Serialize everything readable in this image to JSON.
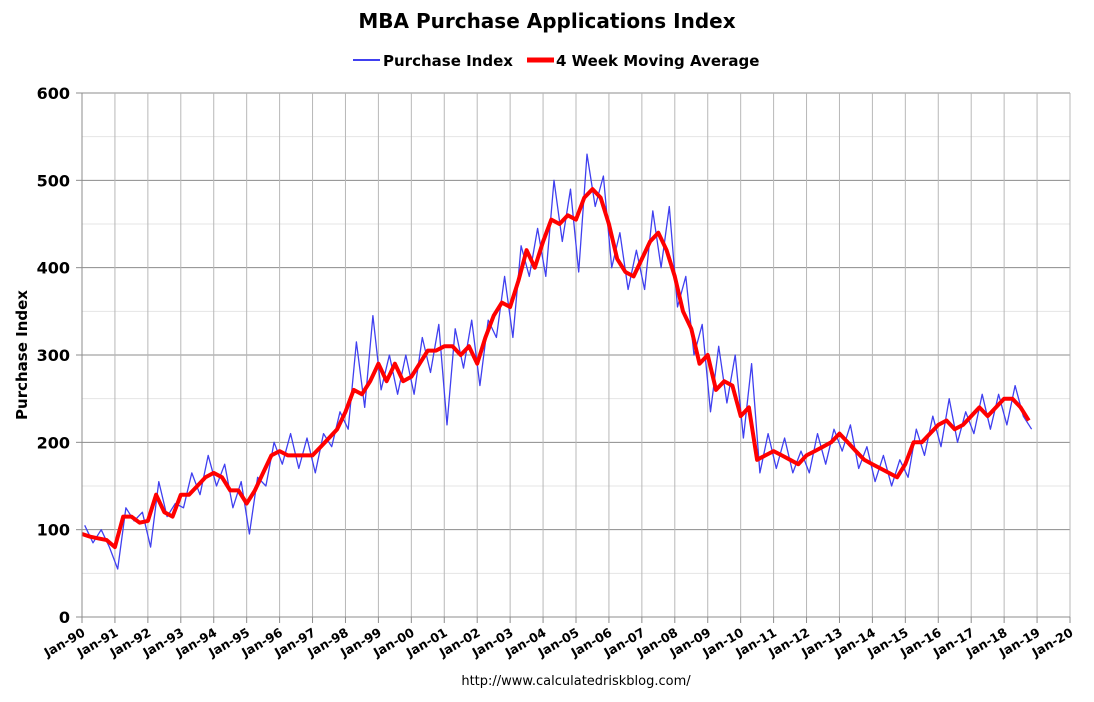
{
  "chart_data": {
    "type": "line",
    "title": "MBA Purchase Applications Index",
    "ylabel": "Purchase Index",
    "xlabel": "",
    "ylim": [
      0,
      600
    ],
    "yticks": [
      0,
      100,
      200,
      300,
      400,
      500,
      600
    ],
    "xlim": [
      "1990-01",
      "2020-01"
    ],
    "xtick_labels": [
      "Jan-90",
      "Jan-91",
      "Jan-92",
      "Jan-93",
      "Jan-94",
      "Jan-95",
      "Jan-96",
      "Jan-97",
      "Jan-98",
      "Jan-99",
      "Jan-00",
      "Jan-01",
      "Jan-02",
      "Jan-03",
      "Jan-04",
      "Jan-05",
      "Jan-06",
      "Jan-07",
      "Jan-08",
      "Jan-09",
      "Jan-10",
      "Jan-11",
      "Jan-12",
      "Jan-13",
      "Jan-14",
      "Jan-15",
      "Jan-16",
      "Jan-17",
      "Jan-18",
      "Jan-19",
      "Jan-20"
    ],
    "grid": true,
    "legend_position": "top-center",
    "source": "http://www.calculatedriskblog.com/",
    "series": [
      {
        "name": "Purchase Index",
        "color": "#4040f0",
        "months": [
          "02",
          "05",
          "08",
          "11"
        ],
        "years_start": 1990,
        "values": [
          105,
          85,
          100,
          80,
          55,
          125,
          110,
          120,
          80,
          155,
          115,
          130,
          125,
          165,
          140,
          185,
          150,
          175,
          125,
          155,
          95,
          160,
          150,
          200,
          175,
          210,
          170,
          205,
          165,
          210,
          195,
          235,
          215,
          315,
          240,
          345,
          260,
          300,
          255,
          300,
          255,
          320,
          280,
          335,
          220,
          330,
          285,
          340,
          265,
          340,
          320,
          390,
          320,
          425,
          390,
          445,
          390,
          500,
          430,
          490,
          395,
          530,
          470,
          505,
          400,
          440,
          375,
          420,
          375,
          465,
          400,
          470,
          355,
          390,
          300,
          335,
          235,
          310,
          245,
          300,
          205,
          290,
          165,
          210,
          170,
          205,
          165,
          190,
          165,
          210,
          175,
          215,
          190,
          220,
          170,
          195,
          155,
          185,
          150,
          180,
          160,
          215,
          185,
          230,
          195,
          250,
          200,
          235,
          210,
          255,
          215,
          255,
          220,
          265,
          230,
          215
        ]
      },
      {
        "name": "4 Week Moving Average",
        "color": "#ff0000",
        "months": [
          "01",
          "04",
          "07",
          "10"
        ],
        "years_start": 1990,
        "values": [
          95,
          92,
          90,
          88,
          80,
          115,
          115,
          108,
          110,
          140,
          120,
          115,
          140,
          140,
          150,
          160,
          165,
          160,
          145,
          145,
          130,
          145,
          165,
          185,
          190,
          185,
          185,
          185,
          185,
          195,
          205,
          215,
          235,
          260,
          255,
          270,
          290,
          270,
          290,
          270,
          275,
          290,
          305,
          305,
          310,
          310,
          300,
          310,
          290,
          320,
          345,
          360,
          355,
          385,
          420,
          400,
          430,
          455,
          450,
          460,
          455,
          480,
          490,
          480,
          450,
          410,
          395,
          390,
          410,
          430,
          440,
          420,
          390,
          350,
          330,
          290,
          300,
          260,
          270,
          265,
          230,
          240,
          180,
          185,
          190,
          185,
          180,
          175,
          185,
          190,
          195,
          200,
          210,
          200,
          190,
          180,
          175,
          170,
          165,
          160,
          175,
          200,
          200,
          210,
          220,
          225,
          215,
          220,
          230,
          240,
          230,
          240,
          250,
          250,
          240,
          225
        ]
      }
    ]
  }
}
